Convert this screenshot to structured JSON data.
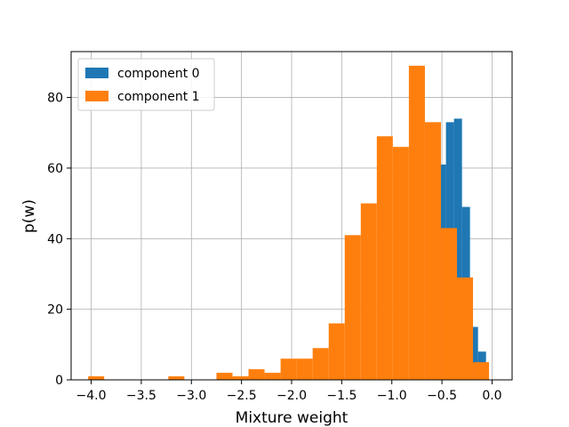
{
  "chart_data": {
    "type": "bar",
    "title": "",
    "xlabel": "Mixture weight",
    "ylabel": "p(w)",
    "xlim": [
      -4.2,
      0.2
    ],
    "ylim": [
      0,
      93
    ],
    "grid": true,
    "legend_position": "upper-left",
    "xticks": [
      {
        "value": -4.0,
        "label": "−4.0"
      },
      {
        "value": -3.5,
        "label": "−3.5"
      },
      {
        "value": -3.0,
        "label": "−3.0"
      },
      {
        "value": -2.5,
        "label": "−2.5"
      },
      {
        "value": -2.0,
        "label": "−2.0"
      },
      {
        "value": -1.5,
        "label": "−1.5"
      },
      {
        "value": -1.0,
        "label": "−1.0"
      },
      {
        "value": -0.5,
        "label": "−0.5"
      },
      {
        "value": 0.0,
        "label": "0.0"
      }
    ],
    "yticks": [
      {
        "value": 0,
        "label": "0"
      },
      {
        "value": 20,
        "label": "20"
      },
      {
        "value": 40,
        "label": "40"
      },
      {
        "value": 60,
        "label": "60"
      },
      {
        "value": 80,
        "label": "80"
      }
    ],
    "series": [
      {
        "name": "component 0",
        "color": "#1f77b4",
        "bins": [
          {
            "x0": -0.62,
            "x1": -0.54,
            "count": 62
          },
          {
            "x0": -0.54,
            "x1": -0.46,
            "count": 61
          },
          {
            "x0": -0.46,
            "x1": -0.38,
            "count": 73
          },
          {
            "x0": -0.38,
            "x1": -0.3,
            "count": 74
          },
          {
            "x0": -0.3,
            "x1": -0.22,
            "count": 49
          },
          {
            "x0": -0.22,
            "x1": -0.14,
            "count": 15
          },
          {
            "x0": -0.14,
            "x1": -0.06,
            "count": 8
          }
        ]
      },
      {
        "name": "component 1",
        "color": "#ff7f0e",
        "bins": [
          {
            "x0": -4.03,
            "x1": -3.87,
            "count": 1
          },
          {
            "x0": -3.87,
            "x1": -3.71,
            "count": 0
          },
          {
            "x0": -3.71,
            "x1": -3.55,
            "count": 0
          },
          {
            "x0": -3.55,
            "x1": -3.39,
            "count": 0
          },
          {
            "x0": -3.39,
            "x1": -3.23,
            "count": 0
          },
          {
            "x0": -3.23,
            "x1": -3.07,
            "count": 1
          },
          {
            "x0": -3.07,
            "x1": -2.91,
            "count": 0
          },
          {
            "x0": -2.91,
            "x1": -2.75,
            "count": 0
          },
          {
            "x0": -2.75,
            "x1": -2.59,
            "count": 2
          },
          {
            "x0": -2.59,
            "x1": -2.43,
            "count": 1
          },
          {
            "x0": -2.43,
            "x1": -2.27,
            "count": 3
          },
          {
            "x0": -2.27,
            "x1": -2.11,
            "count": 2
          },
          {
            "x0": -2.11,
            "x1": -1.95,
            "count": 6
          },
          {
            "x0": -1.95,
            "x1": -1.79,
            "count": 6
          },
          {
            "x0": -1.79,
            "x1": -1.63,
            "count": 9
          },
          {
            "x0": -1.63,
            "x1": -1.47,
            "count": 16
          },
          {
            "x0": -1.47,
            "x1": -1.31,
            "count": 41
          },
          {
            "x0": -1.31,
            "x1": -1.15,
            "count": 50
          },
          {
            "x0": -1.15,
            "x1": -0.99,
            "count": 69
          },
          {
            "x0": -0.99,
            "x1": -0.83,
            "count": 66
          },
          {
            "x0": -0.83,
            "x1": -0.67,
            "count": 89
          },
          {
            "x0": -0.67,
            "x1": -0.51,
            "count": 73
          },
          {
            "x0": -0.51,
            "x1": -0.35,
            "count": 43
          },
          {
            "x0": -0.35,
            "x1": -0.19,
            "count": 29
          },
          {
            "x0": -0.19,
            "x1": -0.03,
            "count": 5
          }
        ]
      }
    ]
  }
}
